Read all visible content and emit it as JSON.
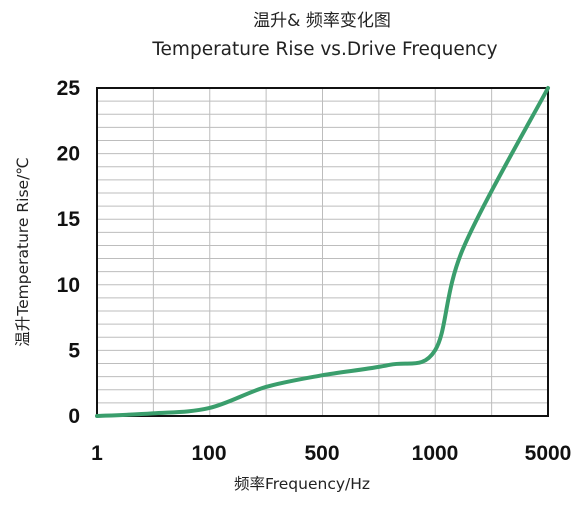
{
  "chart_data": {
    "type": "line",
    "title": "温升& 频率变化图",
    "subtitle": "Temperature Rise vs.Drive Frequency",
    "xlabel": "频率Frequency/Hz",
    "ylabel": "温升Temperature Rise/℃",
    "x_tick_labels": [
      "1",
      "100",
      "500",
      "1000",
      "5000"
    ],
    "y_tick_labels": [
      "0",
      "5",
      "10",
      "15",
      "20",
      "25"
    ],
    "ylim": [
      0,
      25
    ],
    "grid": true,
    "legend": "none",
    "x_scale": "categorical tick positions (non-uniform)",
    "series": [
      {
        "color": "#3a9e6c",
        "x": [
          1,
          50,
          100,
          300,
          500,
          800,
          1000,
          2000,
          5000
        ],
        "y": [
          0,
          0.2,
          0.6,
          2.2,
          3.1,
          3.9,
          5.0,
          12.8,
          25
        ]
      }
    ]
  }
}
